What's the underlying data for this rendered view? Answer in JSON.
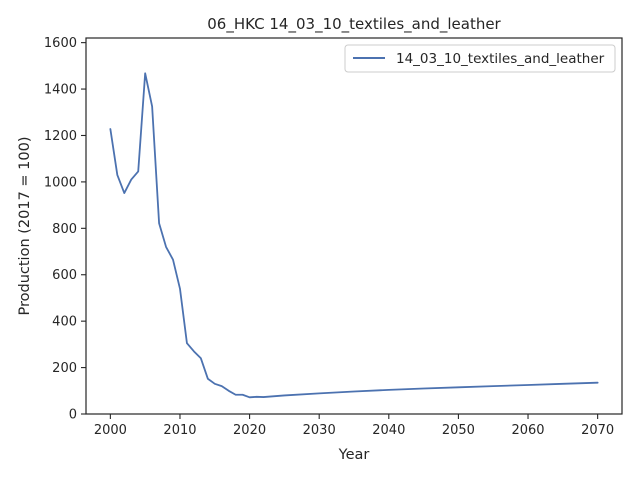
{
  "chart_data": {
    "type": "line",
    "title": "06_HKC 14_03_10_textiles_and_leather",
    "xlabel": "Year",
    "ylabel": "Production (2017 = 100)",
    "xlim": [
      1996.5,
      2073.5
    ],
    "ylim": [
      0,
      1620
    ],
    "x_ticks": [
      2000,
      2010,
      2020,
      2030,
      2040,
      2050,
      2060,
      2070
    ],
    "y_ticks": [
      0,
      200,
      400,
      600,
      800,
      1000,
      1200,
      1400,
      1600
    ],
    "x_tick_labels": [
      "2000",
      "2010",
      "2020",
      "2030",
      "2040",
      "2050",
      "2060",
      "2070"
    ],
    "y_tick_labels": [
      "0",
      "200",
      "400",
      "600",
      "800",
      "1000",
      "1200",
      "1400",
      "1600"
    ],
    "grid": false,
    "legend_position": "top-right",
    "series": [
      {
        "name": "14_03_10_textiles_and_leather",
        "color": "#4c72b0",
        "x": [
          2000,
          2001,
          2002,
          2003,
          2004,
          2005,
          2006,
          2007,
          2008,
          2009,
          2010,
          2011,
          2012,
          2013,
          2014,
          2015,
          2016,
          2017,
          2018,
          2019,
          2020,
          2021,
          2022,
          2025,
          2030,
          2035,
          2040,
          2045,
          2050,
          2055,
          2060,
          2065,
          2070
        ],
        "y": [
          1228,
          1030,
          952,
          1010,
          1045,
          1468,
          1325,
          822,
          720,
          665,
          540,
          305,
          270,
          240,
          152,
          130,
          120,
          100,
          83,
          83,
          72,
          74,
          73,
          80,
          89,
          97,
          104,
          110,
          115,
          120,
          125,
          130,
          135
        ]
      }
    ]
  }
}
